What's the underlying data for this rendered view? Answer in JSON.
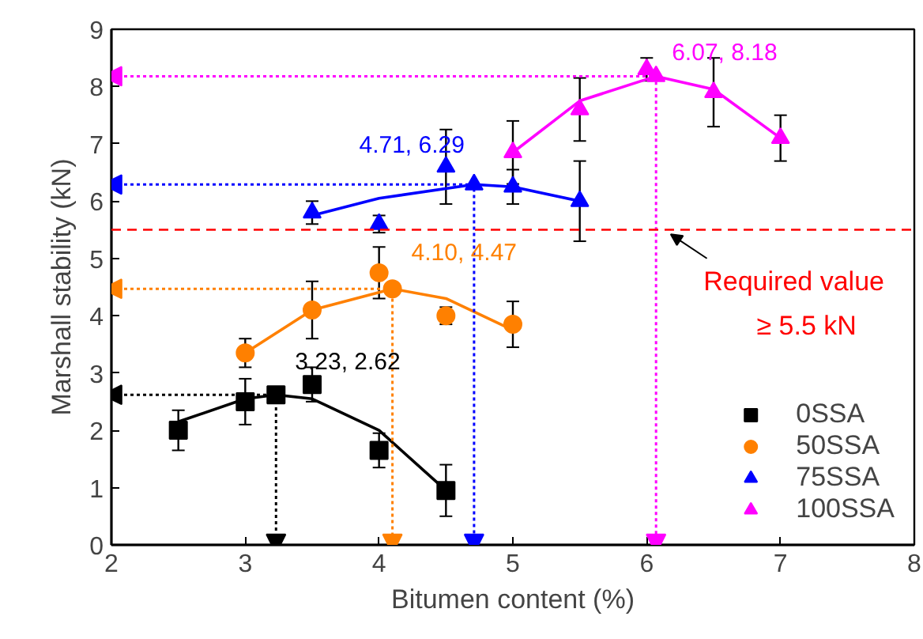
{
  "chart_data": {
    "type": "scatter",
    "xlabel": "Bitumen content (%)",
    "ylabel": "Marshall stability (kN)",
    "xlim": [
      2,
      8
    ],
    "ylim": [
      0,
      9
    ],
    "xticks": [
      2,
      3,
      4,
      5,
      6,
      7,
      8
    ],
    "yticks": [
      0,
      1,
      2,
      3,
      4,
      5,
      6,
      7,
      8,
      9
    ],
    "grid": false,
    "legend": "bottom right",
    "series": [
      {
        "name": "0SSA",
        "color": "#000000",
        "marker": "square",
        "x": [
          2.5,
          3,
          3.23,
          3.5,
          4,
          4.5
        ],
        "values": [
          2.0,
          2.5,
          2.62,
          2.8,
          1.65,
          0.95
        ],
        "errors": [
          0.35,
          0.4,
          null,
          0.3,
          0.3,
          0.45
        ]
      },
      {
        "name": "50SSA",
        "color": "#ff8000",
        "marker": "circle",
        "x": [
          3,
          3.5,
          4,
          4.1,
          4.5,
          5
        ],
        "values": [
          3.35,
          4.1,
          4.75,
          4.47,
          4.0,
          3.85
        ],
        "errors": [
          0.25,
          0.5,
          0.45,
          null,
          0.15,
          0.4
        ]
      },
      {
        "name": "75SSA",
        "color": "#0000ff",
        "marker": "triangle",
        "x": [
          3.5,
          4,
          4.5,
          4.71,
          5,
          5.5
        ],
        "values": [
          5.8,
          5.6,
          6.6,
          6.29,
          6.25,
          6.0
        ],
        "errors": [
          0.2,
          0.15,
          0.65,
          null,
          0.3,
          0.7
        ]
      },
      {
        "name": "100SSA",
        "color": "#ff00ff",
        "marker": "triangle",
        "x": [
          5,
          5.5,
          6,
          6.07,
          6.5,
          7
        ],
        "values": [
          6.85,
          7.6,
          8.3,
          8.18,
          7.9,
          7.1
        ],
        "errors": [
          0.55,
          0.55,
          0.2,
          null,
          0.6,
          0.4
        ]
      },
      {
        "type": "line",
        "color": "#000000",
        "x": [
          2.5,
          3,
          3.23,
          3.5,
          4,
          4.5
        ],
        "values": [
          2.15,
          2.55,
          2.62,
          2.55,
          2.0,
          0.95
        ]
      },
      {
        "type": "line",
        "color": "#ff8000",
        "x": [
          3,
          3.5,
          4.1,
          4.5,
          5
        ],
        "values": [
          3.35,
          4.1,
          4.47,
          4.3,
          3.75
        ]
      },
      {
        "type": "line",
        "color": "#0000ff",
        "x": [
          3.5,
          4,
          4.71,
          5,
          5.5
        ],
        "values": [
          5.75,
          6.05,
          6.29,
          6.25,
          6.0
        ]
      },
      {
        "type": "line",
        "color": "#ff00ff",
        "x": [
          5,
          5.5,
          6.07,
          6.5,
          7
        ],
        "values": [
          6.85,
          7.75,
          8.18,
          7.95,
          7.1
        ]
      },
      {
        "type": "line",
        "color": "#000000",
        "line_style": "dotted",
        "x": [
          2,
          3.23,
          3.23
        ],
        "values": [
          2.62,
          2.62,
          0
        ]
      },
      {
        "type": "line",
        "color": "#ff8000",
        "line_style": "dotted",
        "x": [
          2,
          4.1,
          4.1
        ],
        "values": [
          4.47,
          4.47,
          0
        ]
      },
      {
        "type": "line",
        "color": "#0000ff",
        "line_style": "dotted",
        "x": [
          2,
          4.71,
          4.71
        ],
        "values": [
          6.29,
          6.29,
          0
        ]
      },
      {
        "type": "line",
        "color": "#ff00ff",
        "line_style": "dotted",
        "x": [
          2,
          6.07,
          6.07
        ],
        "values": [
          8.18,
          8.18,
          0
        ]
      }
    ],
    "annotations": [
      {
        "text": "3.23, 2.62",
        "x": 3.23,
        "y": 2.62
      },
      {
        "text": "4.10, 4.47",
        "x": 4.1,
        "y": 4.47
      },
      {
        "text": "4.71, 6.29",
        "x": 4.71,
        "y": 6.29
      },
      {
        "text": "6.07, 8.18",
        "x": 6.07,
        "y": 8.18
      }
    ],
    "ref_lines": [
      {
        "axis": "y",
        "value": 5.5,
        "label": "Required value\n≥ 5.5 kN",
        "color": "#ff0000",
        "line_style": "dashed"
      }
    ]
  }
}
